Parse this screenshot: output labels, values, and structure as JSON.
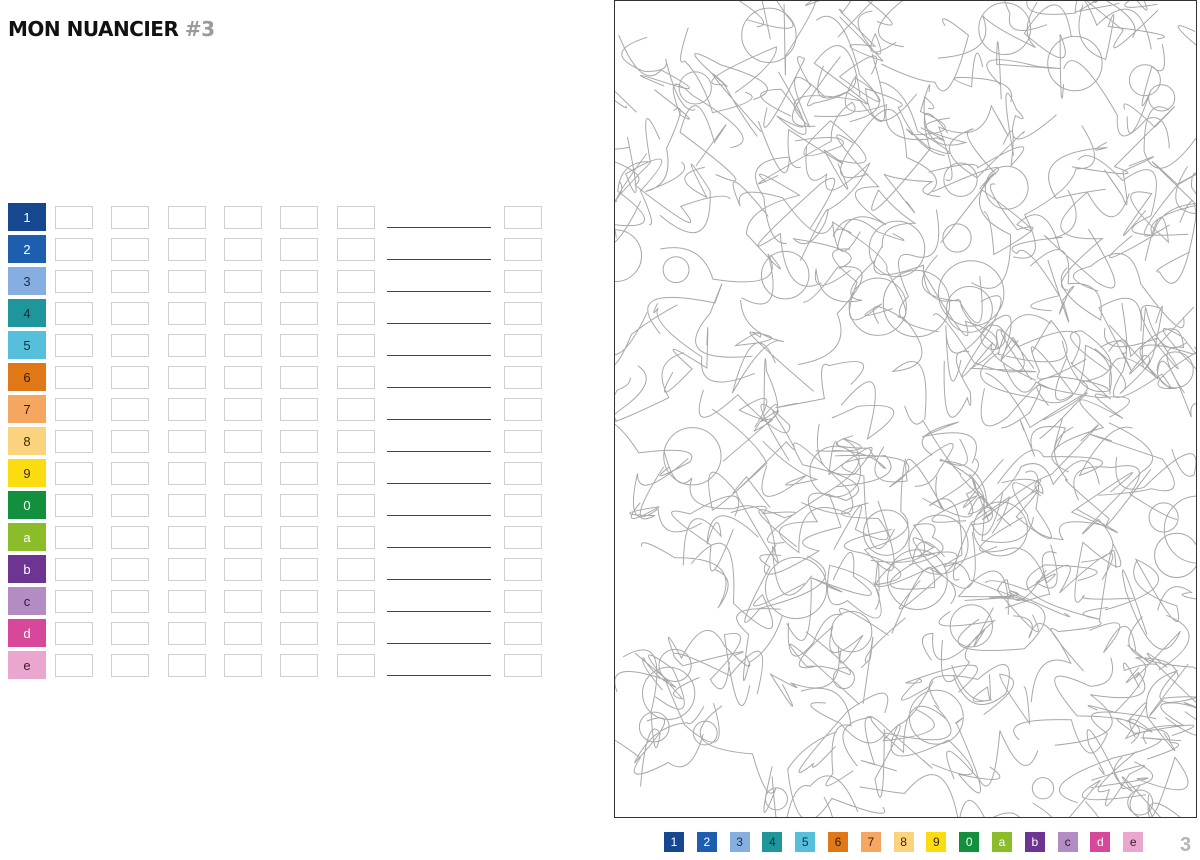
{
  "title": {
    "main": "MON NUANCIER",
    "number": "#3"
  },
  "colors": [
    {
      "label": "1",
      "color": "#17478f",
      "text": "#ffffff"
    },
    {
      "label": "2",
      "color": "#1d5fae",
      "text": "#ffffff"
    },
    {
      "label": "3",
      "color": "#86aee0",
      "text": "#1f2f4a"
    },
    {
      "label": "4",
      "color": "#1f959c",
      "text": "#10303a"
    },
    {
      "label": "5",
      "color": "#55bfdc",
      "text": "#10303a"
    },
    {
      "label": "6",
      "color": "#e07818",
      "text": "#3a1a00"
    },
    {
      "label": "7",
      "color": "#f5a762",
      "text": "#3a1a00"
    },
    {
      "label": "8",
      "color": "#fbd37e",
      "text": "#3a2a00"
    },
    {
      "label": "9",
      "color": "#fbdc10",
      "text": "#3a2a00"
    },
    {
      "label": "0",
      "color": "#12903e",
      "text": "#ffffff"
    },
    {
      "label": "a",
      "color": "#8bbd2a",
      "text": "#ffffff"
    },
    {
      "label": "b",
      "color": "#6d3492",
      "text": "#ffffff"
    },
    {
      "label": "c",
      "color": "#b48cc4",
      "text": "#2a1a3a"
    },
    {
      "label": "d",
      "color": "#d8489a",
      "text": "#ffffff"
    },
    {
      "label": "e",
      "color": "#eaa6cf",
      "text": "#3a1a2a"
    }
  ],
  "page_number": "3"
}
